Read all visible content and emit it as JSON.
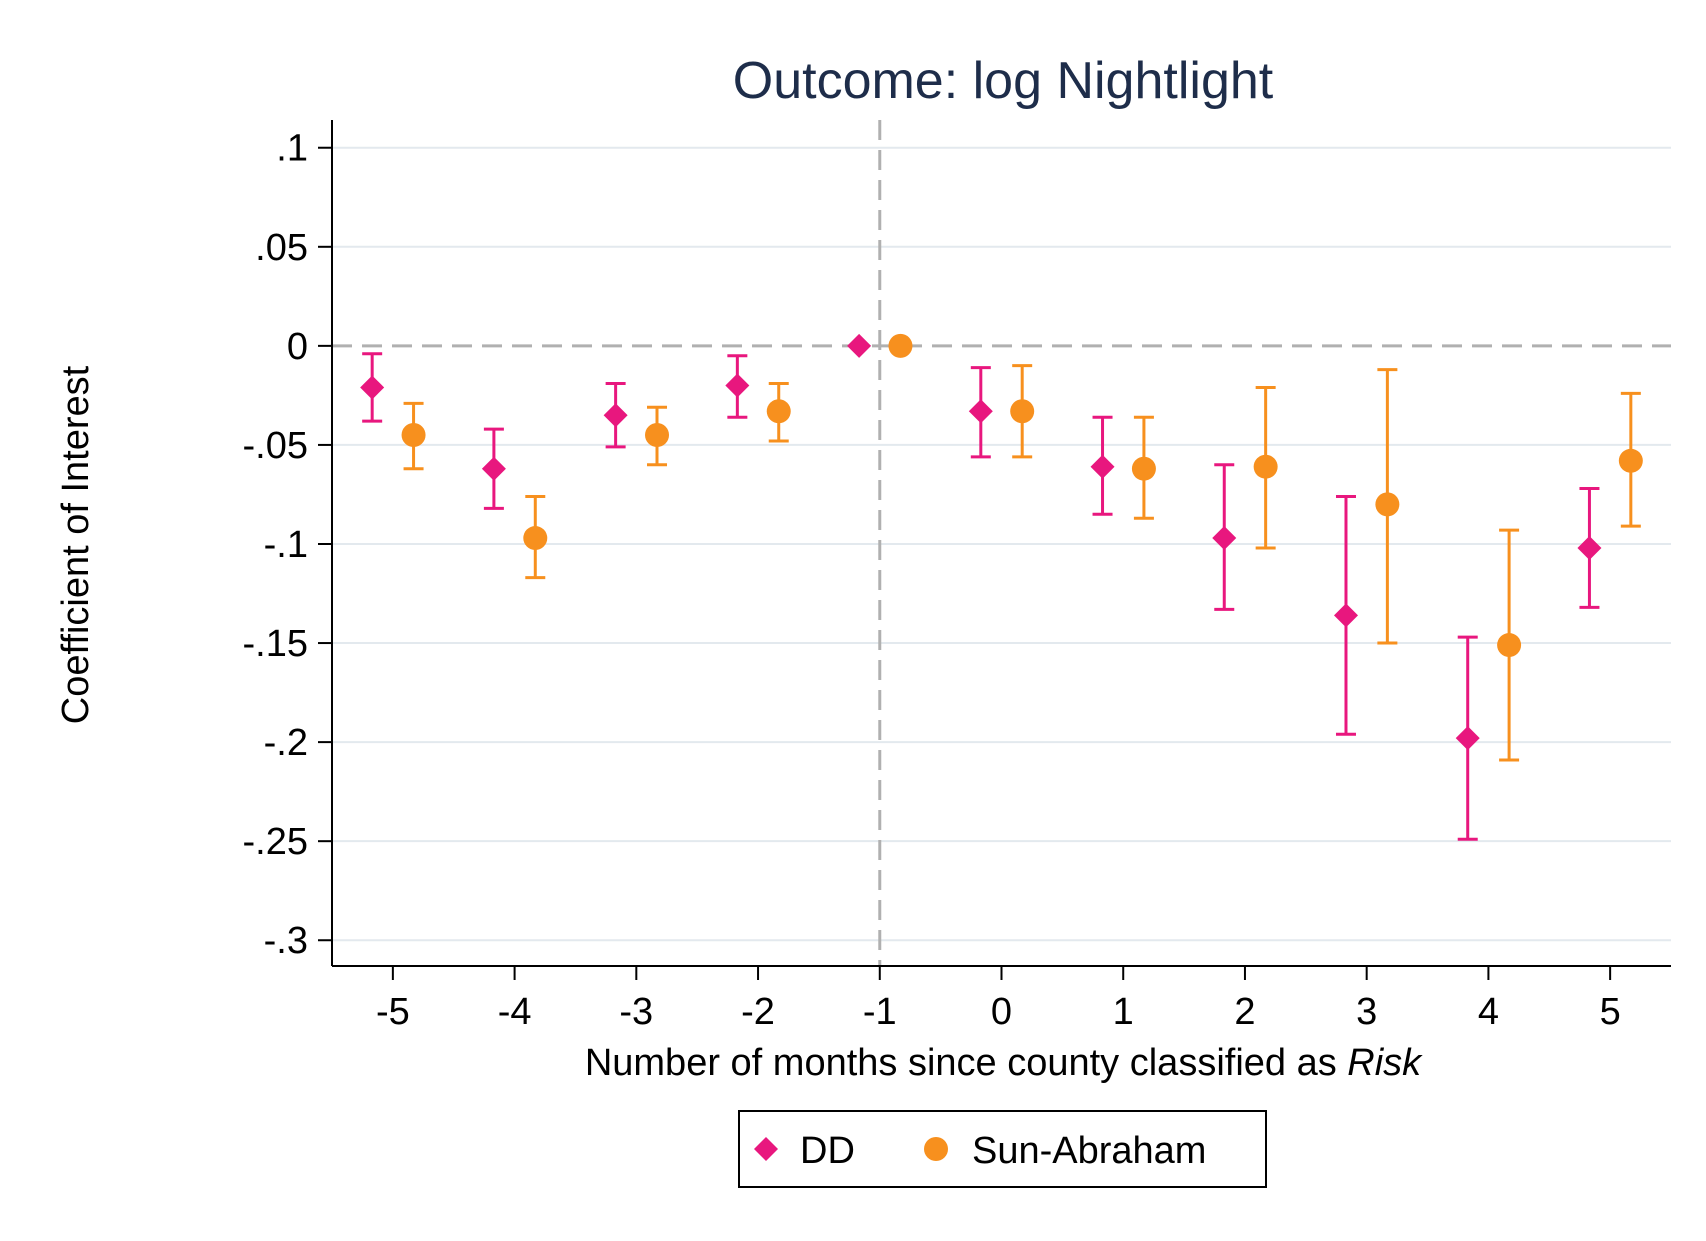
{
  "colors": {
    "dd": "#e8177e",
    "sun_abraham": "#f7901e",
    "title": "#1e2d4a",
    "grid": "#e3e9ee",
    "refline": "#b0b0b0",
    "axis": "#000000"
  },
  "chart_data": {
    "type": "scatter",
    "title": "Outcome: log Nightlight",
    "xlabel": "Number of months since county classified as ",
    "xlabel_italic": "Risk",
    "ylabel": "Coefficient of Interest",
    "x_ticks": [
      -5,
      -4,
      -3,
      -2,
      -1,
      0,
      1,
      2,
      3,
      4,
      5
    ],
    "x_tick_labels": [
      "-5",
      "-4",
      "-3",
      "-2",
      "-1",
      "0",
      "1",
      "2",
      "3",
      "4",
      "5"
    ],
    "y_ticks": [
      0.1,
      0.05,
      0,
      -0.05,
      -0.1,
      -0.15,
      -0.2,
      -0.25,
      -0.3
    ],
    "y_tick_labels": [
      ".1",
      ".05",
      "0",
      "-.05",
      "-.1",
      "-.15",
      "-.2",
      "-.25",
      "-.3"
    ],
    "xlim": [
      -5.5,
      5.5
    ],
    "ylim": [
      -0.313,
      0.114
    ],
    "grid": true,
    "reference_lines": {
      "x": -1,
      "y": 0
    },
    "legend_position": "bottom",
    "series": [
      {
        "name": "DD",
        "marker": "diamond",
        "color": "#e8177e",
        "offset": -0.17,
        "x": [
          -5,
          -4,
          -3,
          -2,
          -1,
          0,
          1,
          2,
          3,
          4,
          5
        ],
        "y": [
          -0.021,
          -0.062,
          -0.035,
          -0.02,
          0.0,
          -0.033,
          -0.061,
          -0.097,
          -0.136,
          -0.198,
          -0.102
        ],
        "ci_low": [
          -0.038,
          -0.082,
          -0.051,
          -0.036,
          null,
          -0.056,
          -0.085,
          -0.133,
          -0.196,
          -0.249,
          -0.132
        ],
        "ci_high": [
          -0.004,
          -0.042,
          -0.019,
          -0.005,
          null,
          -0.011,
          -0.036,
          -0.06,
          -0.076,
          -0.147,
          -0.072
        ]
      },
      {
        "name": "Sun-Abraham",
        "marker": "circle",
        "color": "#f7901e",
        "offset": 0.17,
        "x": [
          -5,
          -4,
          -3,
          -2,
          -1,
          0,
          1,
          2,
          3,
          4,
          5
        ],
        "y": [
          -0.045,
          -0.097,
          -0.045,
          -0.033,
          0.0,
          -0.033,
          -0.062,
          -0.061,
          -0.08,
          -0.151,
          -0.058
        ],
        "ci_low": [
          -0.062,
          -0.117,
          -0.06,
          -0.048,
          null,
          -0.056,
          -0.087,
          -0.102,
          -0.15,
          -0.209,
          -0.091
        ],
        "ci_high": [
          -0.029,
          -0.076,
          -0.031,
          -0.019,
          null,
          -0.01,
          -0.036,
          -0.021,
          -0.012,
          -0.093,
          -0.024
        ]
      }
    ]
  }
}
